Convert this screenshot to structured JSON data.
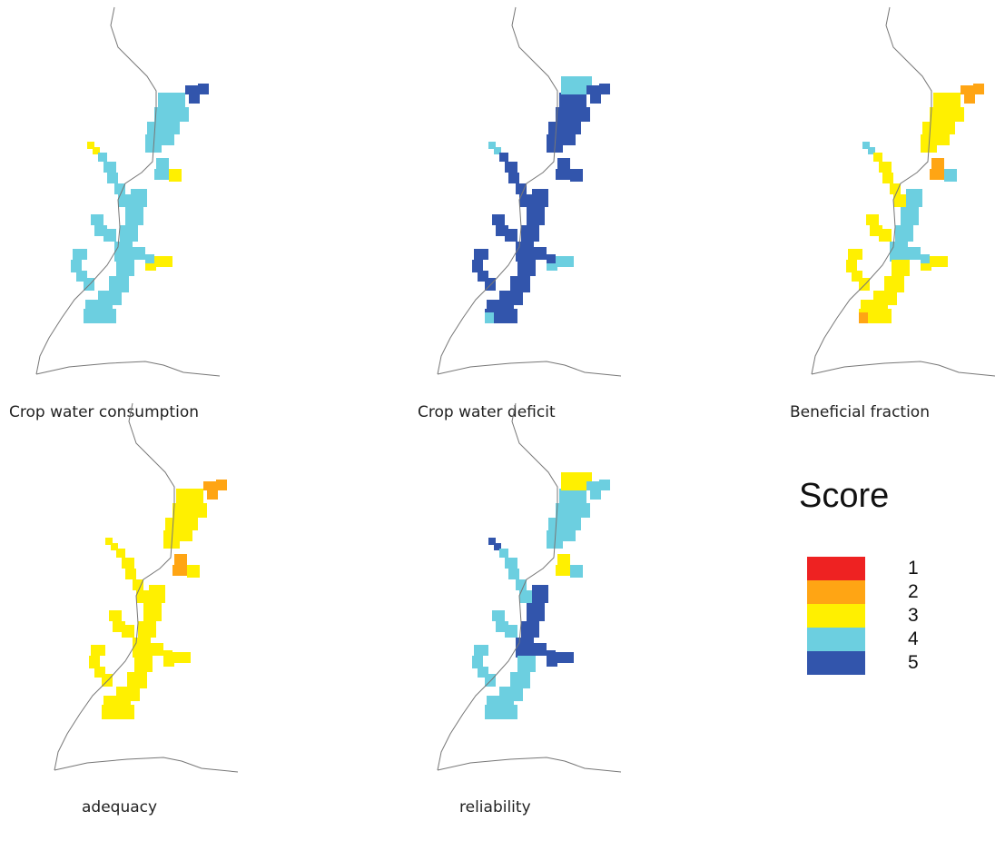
{
  "colors": {
    "score_1": "#ee2222",
    "score_2": "#ffa514",
    "score_3": "#fff000",
    "score_4": "#6ccfe0",
    "score_5": "#3255ac",
    "boundary": "#777777"
  },
  "maps": [
    {
      "id": "crop-water-consumption",
      "caption": "Crop water consumption",
      "segment_scores": {
        "top": 4,
        "tip": 5,
        "upper": 4,
        "upper_right": 3,
        "nw_branch_tip": 3,
        "nw_branch": 4,
        "center": 4,
        "left_branch": 4,
        "right_branch": 4,
        "right_branch_tip": 3,
        "bottom": 4
      }
    },
    {
      "id": "crop-water-deficit",
      "caption": "Crop water deficit",
      "segment_scores": {
        "top": 5,
        "top_center": 4,
        "tip": 5,
        "upper": 5,
        "upper_right": 5,
        "nw_branch_tip": 4,
        "nw_branch": 5,
        "center": 5,
        "left_branch": 5,
        "right_branch": 5,
        "right_branch_tip": 4,
        "bottom": 5,
        "bottom_tip": 4
      }
    },
    {
      "id": "beneficial-fraction",
      "caption": "Beneficial fraction",
      "segment_scores": {
        "top": 3,
        "tip": 2,
        "upper": 2,
        "upper_right": 4,
        "nw_branch_tip": 4,
        "nw_branch": 3,
        "center": 4,
        "left_branch": 3,
        "right_branch": 4,
        "right_branch_tip": 3,
        "bottom": 3,
        "bottom_tip": 2
      }
    },
    {
      "id": "adequacy",
      "caption": "adequacy",
      "segment_scores": {
        "top": 3,
        "tip": 2,
        "upper": 2,
        "upper_right": 3,
        "nw_branch_tip": 3,
        "nw_branch": 3,
        "center": 3,
        "left_branch": 3,
        "right_branch": 3,
        "right_branch_tip": 3,
        "bottom": 3
      }
    },
    {
      "id": "reliability",
      "caption": "reliability",
      "segment_scores": {
        "top": 4,
        "top_center": 3,
        "tip": 4,
        "upper": 3,
        "upper_right": 4,
        "nw_branch_tip": 5,
        "nw_branch": 4,
        "center": 5,
        "left_branch": 4,
        "right_branch": 5,
        "right_branch_tip": 5,
        "bottom": 4
      }
    }
  ],
  "legend": {
    "title": "Score",
    "items": [
      {
        "score": 1,
        "label": "1",
        "color": "#ee2222"
      },
      {
        "score": 2,
        "label": "2",
        "color": "#ffa514"
      },
      {
        "score": 3,
        "label": "3",
        "color": "#fff000"
      },
      {
        "score": 4,
        "label": "4",
        "color": "#6ccfe0"
      },
      {
        "score": 5,
        "label": "5",
        "color": "#3255ac"
      }
    ]
  }
}
